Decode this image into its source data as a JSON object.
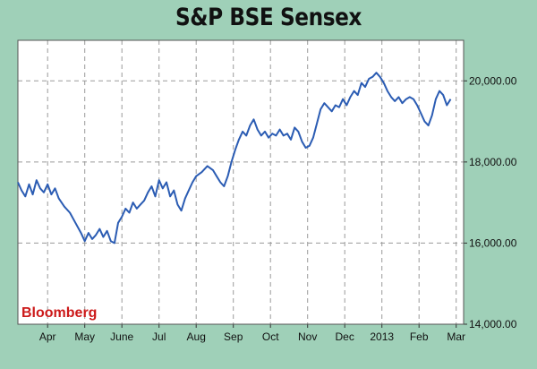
{
  "chart_data": {
    "type": "line",
    "title": "S&P BSE Sensex",
    "source_label": "Bloomberg",
    "xlabel": "",
    "ylabel": "",
    "ylim": [
      14000,
      21000
    ],
    "y_ticks": [
      14000,
      16000,
      18000,
      20000
    ],
    "y_tick_labels": [
      "14,000.00",
      "16,000.00",
      "18,000.00",
      "20,000.00"
    ],
    "x_ticks": [
      {
        "label": "Apr",
        "month": 1
      },
      {
        "label": "May",
        "month": 2
      },
      {
        "label": "June",
        "month": 3
      },
      {
        "label": "Jul",
        "month": 4
      },
      {
        "label": "Aug",
        "month": 5
      },
      {
        "label": "Sep",
        "month": 6
      },
      {
        "label": "Oct",
        "month": 7
      },
      {
        "label": "Nov",
        "month": 8
      },
      {
        "label": "Dec",
        "month": 9
      },
      {
        "label": "2013",
        "month": 10
      },
      {
        "label": "Feb",
        "month": 11
      },
      {
        "label": "Mar",
        "month": 12
      }
    ],
    "xlim": [
      0.2,
      12.2
    ],
    "grid": true,
    "line_color": "#2b5cb3",
    "series": [
      {
        "values": [
          [
            0.2,
            17500
          ],
          [
            0.3,
            17300
          ],
          [
            0.4,
            17150
          ],
          [
            0.5,
            17450
          ],
          [
            0.6,
            17200
          ],
          [
            0.7,
            17550
          ],
          [
            0.8,
            17350
          ],
          [
            0.9,
            17250
          ],
          [
            1.0,
            17450
          ],
          [
            1.1,
            17200
          ],
          [
            1.2,
            17350
          ],
          [
            1.3,
            17100
          ],
          [
            1.45,
            16900
          ],
          [
            1.6,
            16750
          ],
          [
            1.75,
            16500
          ],
          [
            1.9,
            16250
          ],
          [
            2.0,
            16050
          ],
          [
            2.1,
            16250
          ],
          [
            2.2,
            16100
          ],
          [
            2.3,
            16200
          ],
          [
            2.4,
            16350
          ],
          [
            2.5,
            16150
          ],
          [
            2.6,
            16300
          ],
          [
            2.7,
            16050
          ],
          [
            2.8,
            16000
          ],
          [
            2.9,
            16500
          ],
          [
            3.0,
            16650
          ],
          [
            3.1,
            16850
          ],
          [
            3.2,
            16750
          ],
          [
            3.3,
            17000
          ],
          [
            3.4,
            16850
          ],
          [
            3.5,
            16950
          ],
          [
            3.6,
            17050
          ],
          [
            3.7,
            17250
          ],
          [
            3.8,
            17400
          ],
          [
            3.9,
            17150
          ],
          [
            4.0,
            17550
          ],
          [
            4.1,
            17350
          ],
          [
            4.2,
            17500
          ],
          [
            4.3,
            17150
          ],
          [
            4.4,
            17300
          ],
          [
            4.5,
            16950
          ],
          [
            4.6,
            16800
          ],
          [
            4.7,
            17100
          ],
          [
            4.8,
            17300
          ],
          [
            4.9,
            17500
          ],
          [
            5.0,
            17650
          ],
          [
            5.15,
            17750
          ],
          [
            5.3,
            17900
          ],
          [
            5.45,
            17800
          ],
          [
            5.55,
            17650
          ],
          [
            5.65,
            17500
          ],
          [
            5.75,
            17400
          ],
          [
            5.85,
            17650
          ],
          [
            5.95,
            18000
          ],
          [
            6.05,
            18300
          ],
          [
            6.15,
            18550
          ],
          [
            6.25,
            18750
          ],
          [
            6.35,
            18650
          ],
          [
            6.45,
            18900
          ],
          [
            6.55,
            19050
          ],
          [
            6.65,
            18800
          ],
          [
            6.75,
            18650
          ],
          [
            6.85,
            18750
          ],
          [
            6.95,
            18600
          ],
          [
            7.05,
            18700
          ],
          [
            7.15,
            18650
          ],
          [
            7.25,
            18800
          ],
          [
            7.35,
            18650
          ],
          [
            7.45,
            18700
          ],
          [
            7.55,
            18550
          ],
          [
            7.65,
            18850
          ],
          [
            7.75,
            18750
          ],
          [
            7.85,
            18500
          ],
          [
            7.95,
            18350
          ],
          [
            8.05,
            18400
          ],
          [
            8.15,
            18600
          ],
          [
            8.25,
            18950
          ],
          [
            8.35,
            19300
          ],
          [
            8.45,
            19450
          ],
          [
            8.55,
            19350
          ],
          [
            8.65,
            19250
          ],
          [
            8.75,
            19400
          ],
          [
            8.85,
            19350
          ],
          [
            8.95,
            19550
          ],
          [
            9.05,
            19400
          ],
          [
            9.15,
            19600
          ],
          [
            9.25,
            19750
          ],
          [
            9.35,
            19650
          ],
          [
            9.45,
            19950
          ],
          [
            9.55,
            19850
          ],
          [
            9.65,
            20050
          ],
          [
            9.75,
            20100
          ],
          [
            9.85,
            20200
          ],
          [
            9.95,
            20100
          ],
          [
            10.05,
            19950
          ],
          [
            10.15,
            19750
          ],
          [
            10.25,
            19600
          ],
          [
            10.35,
            19500
          ],
          [
            10.45,
            19600
          ],
          [
            10.55,
            19450
          ],
          [
            10.65,
            19550
          ],
          [
            10.75,
            19600
          ],
          [
            10.85,
            19550
          ],
          [
            10.95,
            19400
          ],
          [
            11.05,
            19200
          ],
          [
            11.15,
            19000
          ],
          [
            11.25,
            18900
          ],
          [
            11.35,
            19150
          ],
          [
            11.45,
            19550
          ],
          [
            11.55,
            19750
          ],
          [
            11.65,
            19650
          ],
          [
            11.75,
            19400
          ],
          [
            11.85,
            19550
          ]
        ]
      }
    ]
  }
}
